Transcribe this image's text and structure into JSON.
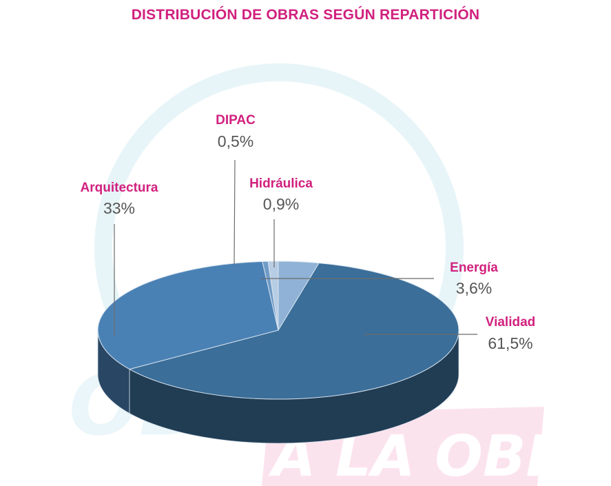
{
  "colors": {
    "title": "#d1207e",
    "label_name": "#d1207e",
    "label_value": "#555555",
    "leader_line": "#6b6b6b",
    "watermark_light": "#e6f4f7",
    "watermark_pink": "#fbe3ee"
  },
  "watermark": {
    "text_top": "OBRAS",
    "text_bottom": "A LA OBRA"
  },
  "chart_data": {
    "type": "pie",
    "title": "DISTRIBUCIÓN DE OBRAS SEGÚN REPARTICIÓN",
    "style": "3d",
    "slices": [
      {
        "name": "Vialidad",
        "value": 61.5,
        "label": "61,5%",
        "color": "#3b6e99"
      },
      {
        "name": "Arquitectura",
        "value": 33,
        "label": "33%",
        "color": "#4a81b5"
      },
      {
        "name": "DIPAC",
        "value": 0.5,
        "label": "0,5%",
        "color": "#6f9bc7"
      },
      {
        "name": "Hidráulica",
        "value": 0.9,
        "label": "0,9%",
        "color": "#b7cde4"
      },
      {
        "name": "Energía",
        "value": 3.6,
        "label": "3,6%",
        "color": "#8fb2d6"
      }
    ]
  }
}
